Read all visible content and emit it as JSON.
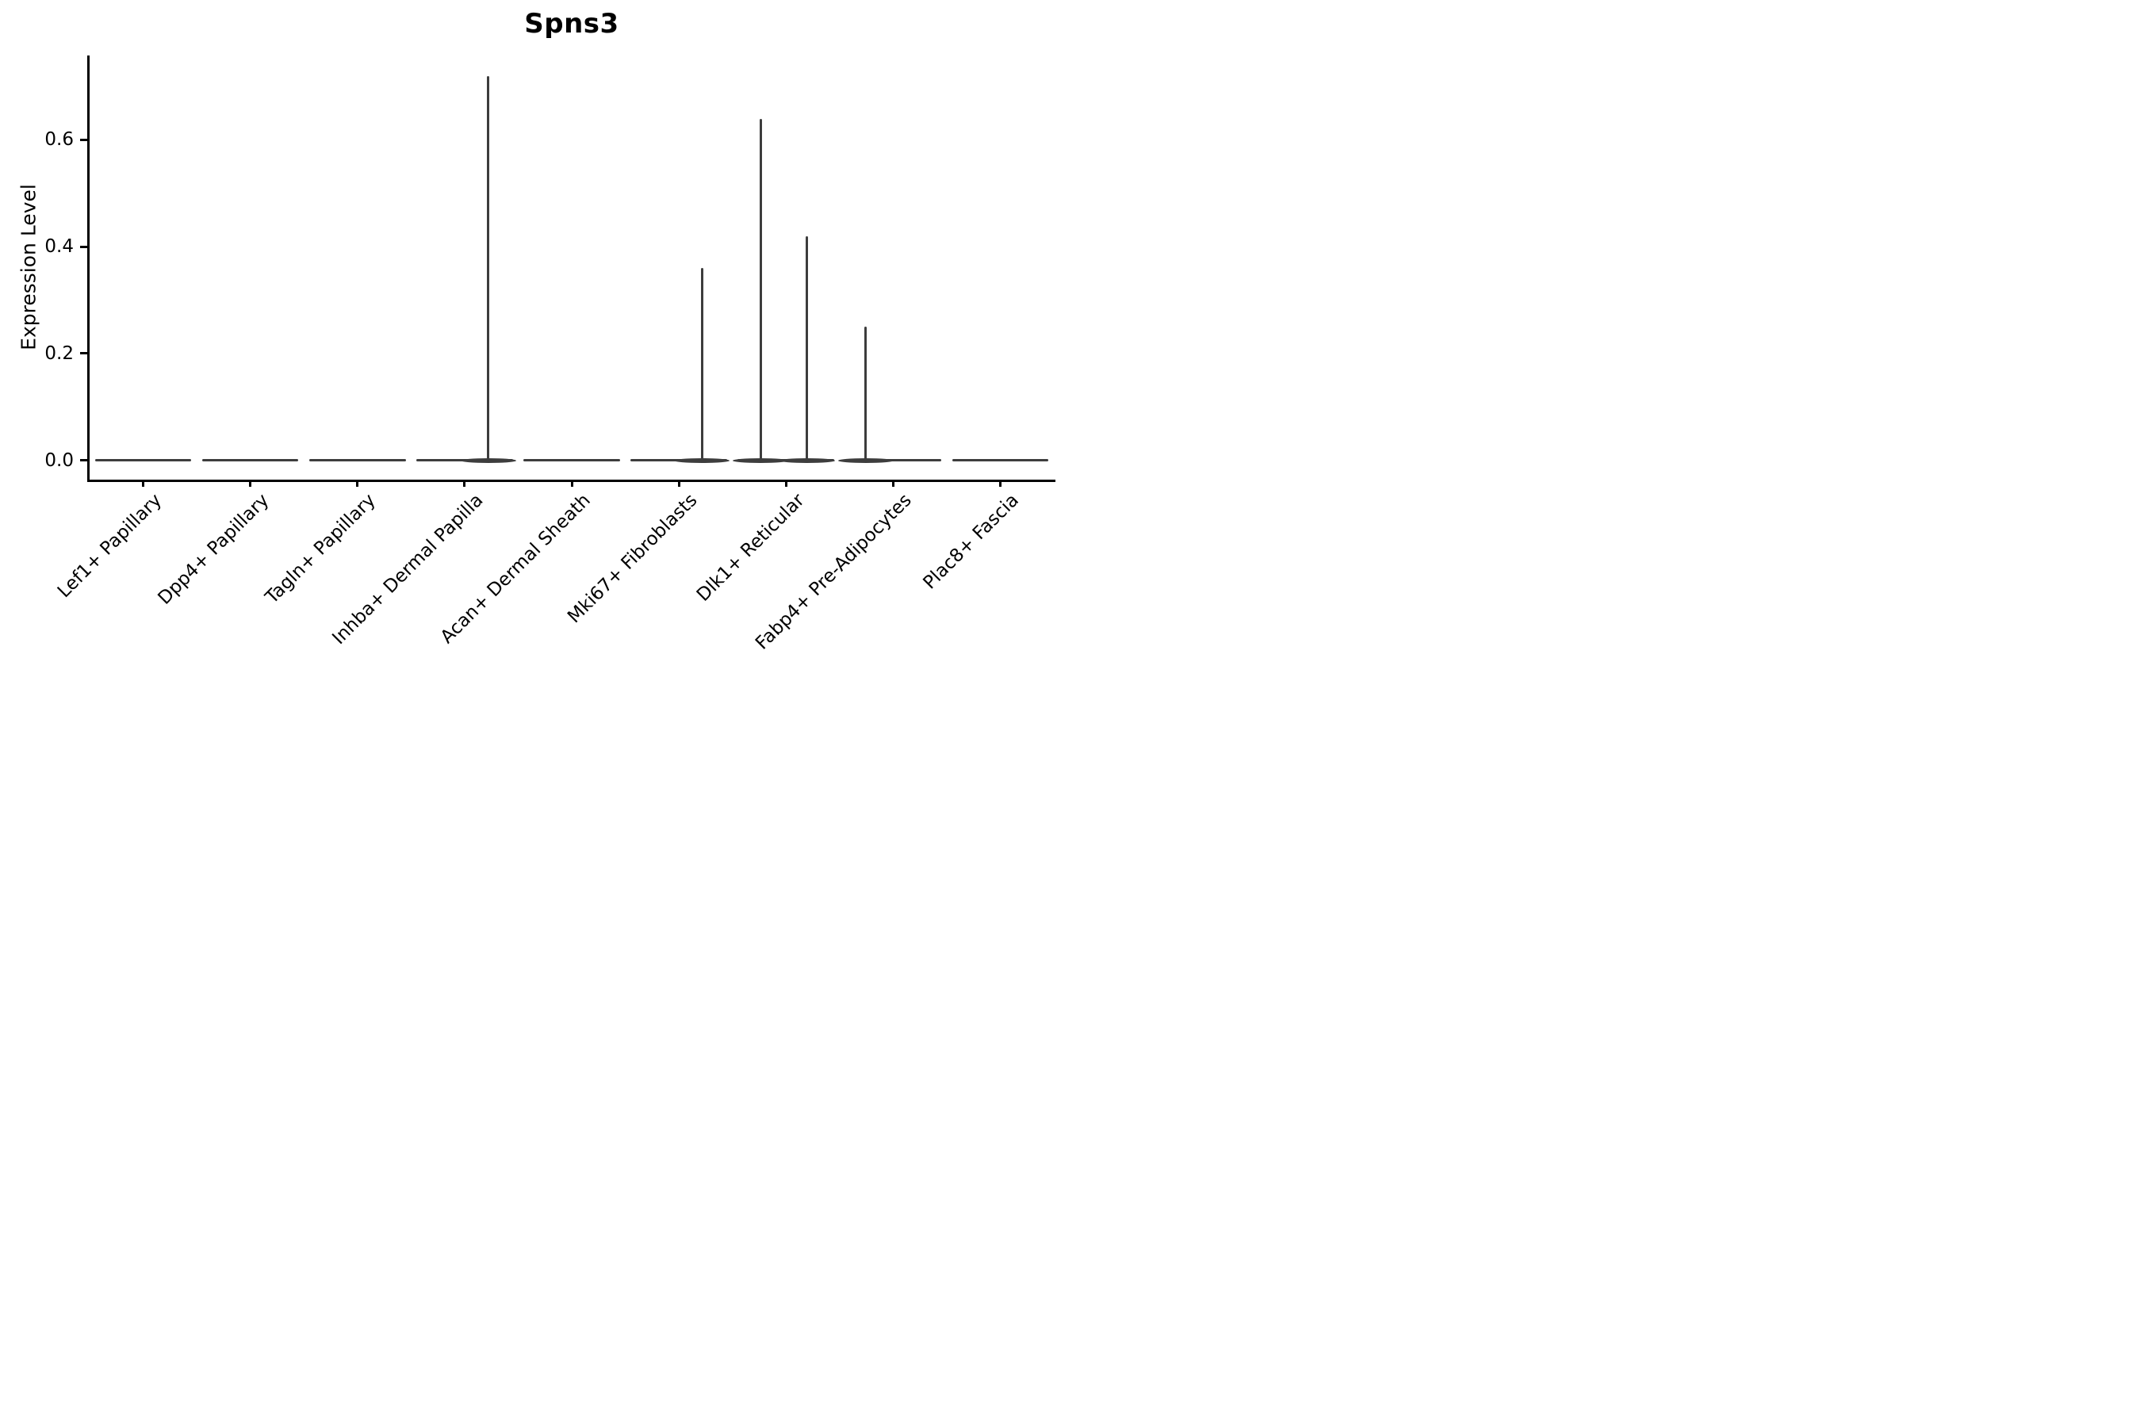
{
  "figure": {
    "title": "Spns3"
  },
  "chart_data": {
    "type": "violin",
    "title": "Spns3",
    "xlabel": "",
    "ylabel": "Expression Level",
    "ylim": [
      -0.036,
      0.758
    ],
    "yticks": [
      0,
      0.2,
      0.4,
      0.6
    ],
    "ytick_labels": [
      "0.0",
      "0.2",
      "0.4",
      "0.6"
    ],
    "grid": false,
    "legend": null,
    "categories": [
      "Lef1+ Papillary",
      "Dpp4+ Papillary",
      "Tagln+ Papillary",
      "Inhba+ Dermal Papilla",
      "Acan+ Dermal Sheath",
      "Mki67+ Fibroblasts",
      "Dlk1+ Reticular",
      "Fabp4+ Pre-Adipocytes",
      "Plac8+ Fascia"
    ],
    "violins": [
      {
        "category": "Lef1+ Papillary",
        "body": "flat-at-zero",
        "max_expression": 0.0,
        "spikes": []
      },
      {
        "category": "Dpp4+ Papillary",
        "body": "flat-at-zero",
        "max_expression": 0.0,
        "spikes": []
      },
      {
        "category": "Tagln+ Papillary",
        "body": "flat-at-zero",
        "max_expression": 0.0,
        "spikes": []
      },
      {
        "category": "Inhba+ Dermal Papilla",
        "body": "flat-at-zero",
        "max_expression": 0.72,
        "spikes": [
          {
            "value": 0.72,
            "offset_frac": 0.49
          }
        ]
      },
      {
        "category": "Acan+ Dermal Sheath",
        "body": "flat-at-zero",
        "max_expression": 0.0,
        "spikes": []
      },
      {
        "category": "Mki67+ Fibroblasts",
        "body": "flat-at-zero",
        "max_expression": 0.36,
        "spikes": [
          {
            "value": 0.36,
            "offset_frac": 0.48
          }
        ]
      },
      {
        "category": "Dlk1+ Reticular",
        "body": "flat-at-zero",
        "max_expression": 0.64,
        "spikes": [
          {
            "value": 0.64,
            "offset_frac": -0.53
          },
          {
            "value": 0.42,
            "offset_frac": 0.44
          }
        ]
      },
      {
        "category": "Fabp4+ Pre-Adipocytes",
        "body": "flat-at-zero",
        "max_expression": 0.25,
        "spikes": [
          {
            "value": 0.25,
            "offset_frac": -0.57
          }
        ]
      },
      {
        "category": "Plac8+ Fascia",
        "body": "flat-at-zero",
        "max_expression": 0.0,
        "spikes": []
      }
    ],
    "style": {
      "violin_color": "#3d3d3d",
      "axis_color": "#000000",
      "background": "#ffffff"
    }
  }
}
